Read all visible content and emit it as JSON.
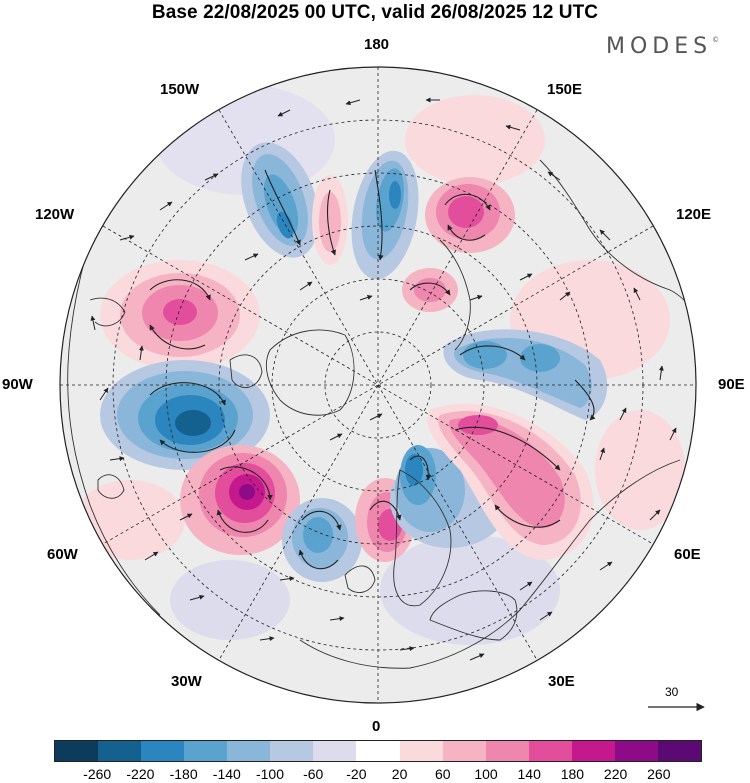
{
  "title": "Base 22/08/2025 00 UTC, valid 26/08/2025 12 UTC",
  "brand": {
    "name": "MODES",
    "mark": "©"
  },
  "longitude_labels": {
    "n180": "180",
    "w150": "150W",
    "e150": "150E",
    "w120": "120W",
    "e120": "120E",
    "w90": "90W",
    "e90": "90E",
    "w60": "60W",
    "e60": "60E",
    "w30": "30W",
    "e30": "30E",
    "n0": "0"
  },
  "reference_vector": {
    "value": "30"
  },
  "colorbar": {
    "ticks": [
      "-260",
      "-220",
      "-180",
      "-140",
      "-100",
      "-60",
      "-20",
      "20",
      "60",
      "100",
      "140",
      "180",
      "220",
      "260"
    ],
    "colors": [
      "#0c3b5c",
      "#14608f",
      "#2b86bf",
      "#5aa3cf",
      "#8ab6d9",
      "#b7c8e3",
      "#dcdcec",
      "#ffffff",
      "#fadadd",
      "#f5b3c3",
      "#ee86ad",
      "#e24e9b",
      "#c4188c",
      "#8e0b87",
      "#5b0a74"
    ]
  },
  "anomaly_centers": [
    {
      "name": "pos-alaska",
      "value": 140
    },
    {
      "name": "neg-canada",
      "value": -220
    },
    {
      "name": "pos-greenland-sea",
      "value": 220
    },
    {
      "name": "neg-north-atlantic",
      "value": -140
    },
    {
      "name": "pos-scandinavia",
      "value": 180
    },
    {
      "name": "neg-barents",
      "value": -180
    },
    {
      "name": "pos-russia",
      "value": 180
    },
    {
      "name": "neg-siberia",
      "value": -140
    },
    {
      "name": "pos-east-siberia",
      "value": 180
    },
    {
      "name": "neg-pacific-1",
      "value": -180
    },
    {
      "name": "neg-pacific-2",
      "value": -180
    },
    {
      "name": "pos-pacific",
      "value": 100
    }
  ]
}
